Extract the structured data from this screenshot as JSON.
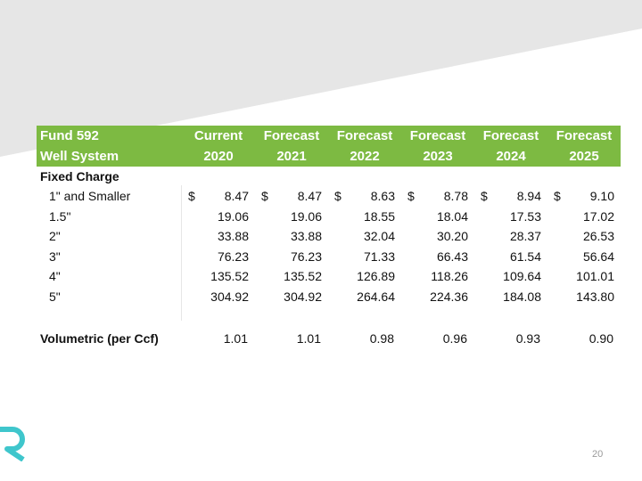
{
  "colors": {
    "header_bg": "#7dba42",
    "band": "#e6e6e6",
    "logo": "#3fc6cc"
  },
  "icons": {
    "logo": "brand-logo-icon"
  },
  "table": {
    "header_label_line1": "Fund 592",
    "header_label_line2": "Well System",
    "columns": [
      {
        "line1": "Current",
        "line2": "2020"
      },
      {
        "line1": "Forecast",
        "line2": "2021"
      },
      {
        "line1": "Forecast",
        "line2": "2022"
      },
      {
        "line1": "Forecast",
        "line2": "2023"
      },
      {
        "line1": "Forecast",
        "line2": "2024"
      },
      {
        "line1": "Forecast",
        "line2": "2025"
      }
    ],
    "section_label": "Fixed Charge",
    "currency_symbol": "$",
    "rows": [
      {
        "label": "1\" and Smaller",
        "values": [
          "8.47",
          "8.47",
          "8.63",
          "8.78",
          "8.94",
          "9.10"
        ]
      },
      {
        "label": "1.5\"",
        "values": [
          "19.06",
          "19.06",
          "18.55",
          "18.04",
          "17.53",
          "17.02"
        ]
      },
      {
        "label": "2\"",
        "values": [
          "33.88",
          "33.88",
          "32.04",
          "30.20",
          "28.37",
          "26.53"
        ]
      },
      {
        "label": "3\"",
        "values": [
          "76.23",
          "76.23",
          "71.33",
          "66.43",
          "61.54",
          "56.64"
        ]
      },
      {
        "label": "4\"",
        "values": [
          "135.52",
          "135.52",
          "126.89",
          "118.26",
          "109.64",
          "101.01"
        ]
      },
      {
        "label": "5\"",
        "values": [
          "304.92",
          "304.92",
          "264.64",
          "224.36",
          "184.08",
          "143.80"
        ]
      }
    ],
    "volumetric": {
      "label": "Volumetric (per Ccf)",
      "values": [
        "1.01",
        "1.01",
        "0.98",
        "0.96",
        "0.93",
        "0.90"
      ]
    }
  },
  "page_number": "20"
}
